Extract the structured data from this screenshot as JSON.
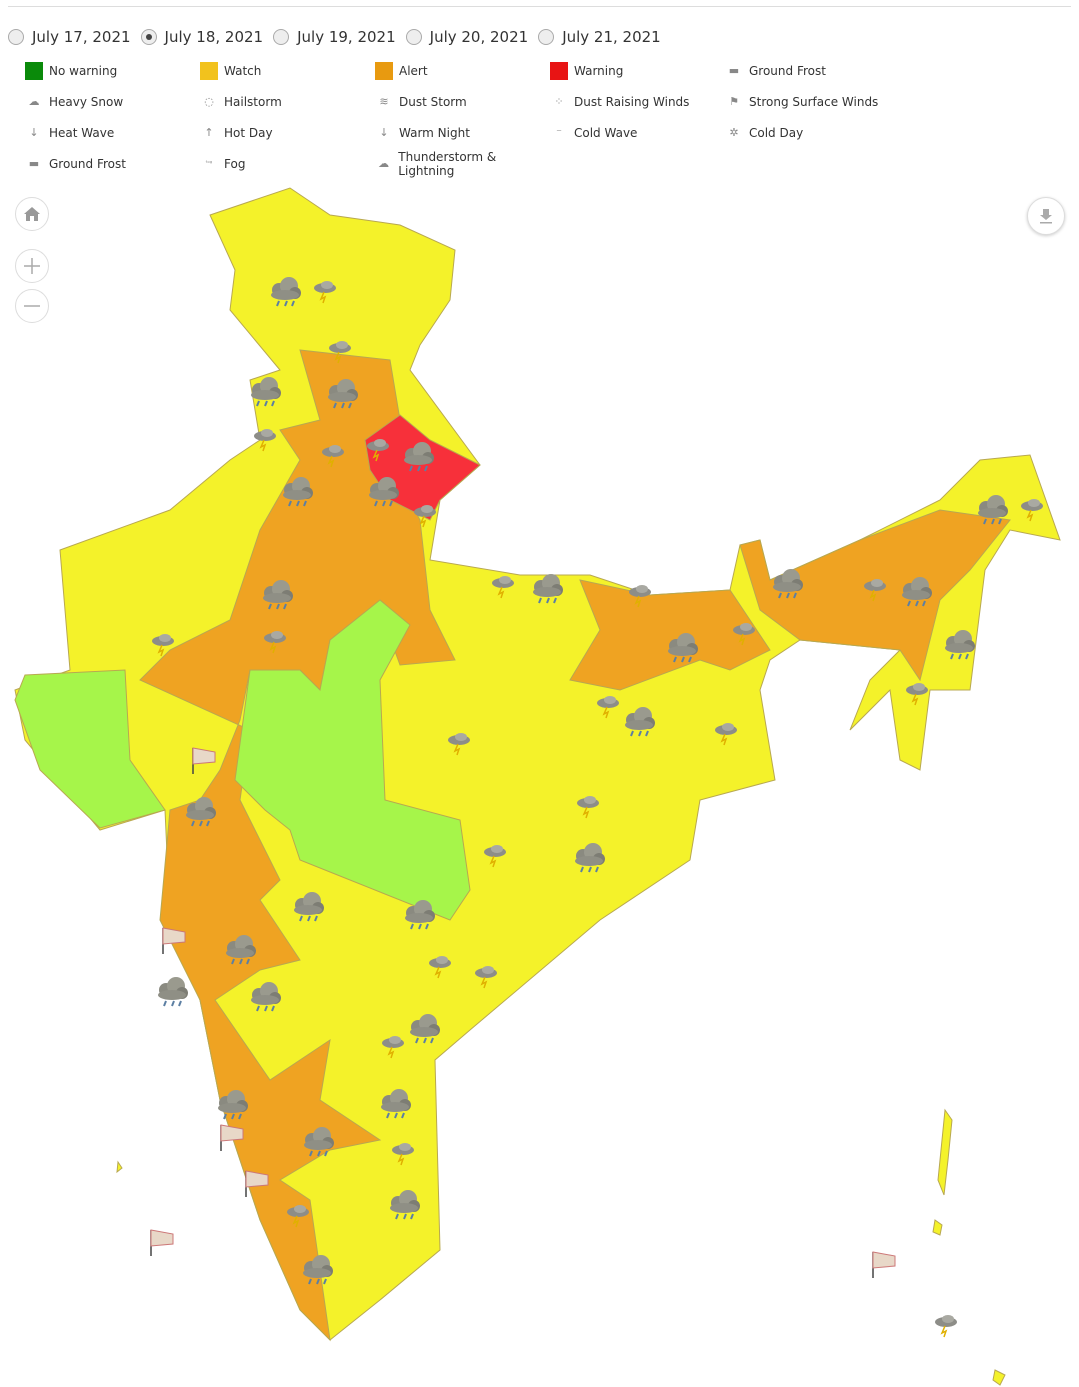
{
  "dates": {
    "options": [
      "July 17, 2021",
      "July 18, 2021",
      "July 19, 2021",
      "July 20, 2021",
      "July 21, 2021"
    ],
    "selected": 1
  },
  "legend": [
    {
      "label": "No warning",
      "color": "#0a8a0a"
    },
    {
      "label": "Watch",
      "color": "#f2c21d"
    },
    {
      "label": "Alert",
      "color": "#e89a10"
    },
    {
      "label": "Warning",
      "color": "#e81414"
    },
    {
      "label": "Ground Frost"
    },
    {
      "label": "Heavy Snow"
    },
    {
      "label": "Hailstorm"
    },
    {
      "label": "Dust Storm"
    },
    {
      "label": "Dust Raising Winds"
    },
    {
      "label": "Strong Surface Winds"
    },
    {
      "label": "Heat Wave"
    },
    {
      "label": "Hot Day"
    },
    {
      "label": "Warm Night"
    },
    {
      "label": "Cold Wave"
    },
    {
      "label": "Cold Day"
    },
    {
      "label": "Ground Frost"
    },
    {
      "label": "Fog"
    },
    {
      "label": "Thunderstorm & Lightning"
    }
  ]
}
